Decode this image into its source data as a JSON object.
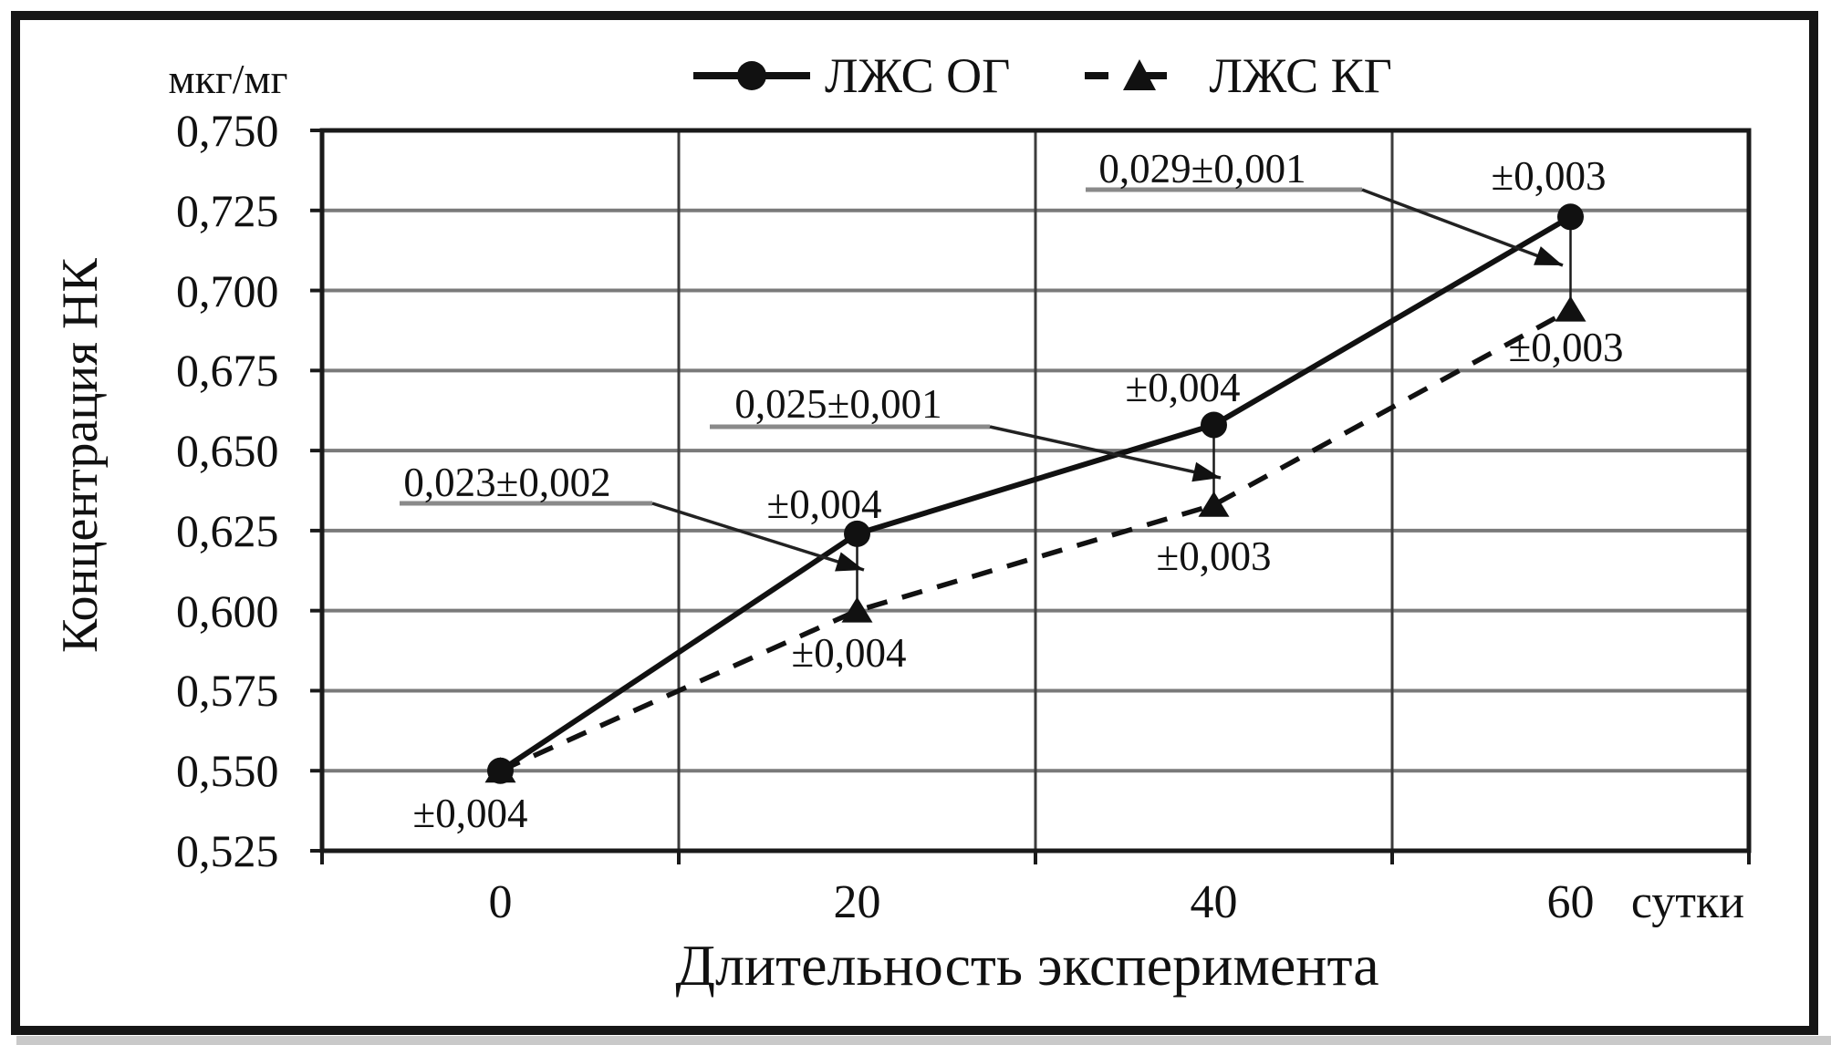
{
  "chart_data": {
    "type": "line",
    "title": "",
    "x": [
      0,
      20,
      40,
      60
    ],
    "x_tick_labels": [
      "0",
      "20",
      "40",
      "60"
    ],
    "x_axis_unit": "сутки",
    "xlabel": "Длительность эксперимента",
    "ylabel": "Концентрация НК",
    "y_unit": "мкг/мг",
    "ylim": [
      0.525,
      0.75
    ],
    "y_tick_step": 0.025,
    "y_tick_labels": [
      "0,750",
      "0,725",
      "0,700",
      "0,675",
      "0,650",
      "0,625",
      "0,600",
      "0,575",
      "0,550",
      "0,525"
    ],
    "grid": true,
    "legend_position": "top-center",
    "series": [
      {
        "name": "ЛЖС ОГ",
        "line_style": "solid",
        "marker": "circle",
        "values": [
          0.55,
          0.624,
          0.658,
          0.723
        ],
        "error_labels": [
          "±0,004",
          "±0,004",
          "±0,004",
          "±0,003"
        ]
      },
      {
        "name": "ЛЖС КГ",
        "line_style": "dashed",
        "marker": "triangle",
        "values": [
          0.55,
          0.6,
          0.633,
          0.694
        ],
        "error_labels": [
          null,
          "±0,004",
          "±0,003",
          "±0,003"
        ]
      }
    ],
    "difference_callouts": [
      {
        "x": 20,
        "text": "0,023±0,002"
      },
      {
        "x": 40,
        "text": "0,025±0,001"
      },
      {
        "x": 60,
        "text": "0,029±0,001"
      }
    ],
    "colors": {
      "ink": "#111111",
      "grid_horizontal": "#7a7a7a",
      "grid_vertical": "#3c3c3c",
      "plot_border": "#1a1a1a",
      "annotation_underline": "#8a8a8a",
      "background": "#ffffff"
    }
  }
}
